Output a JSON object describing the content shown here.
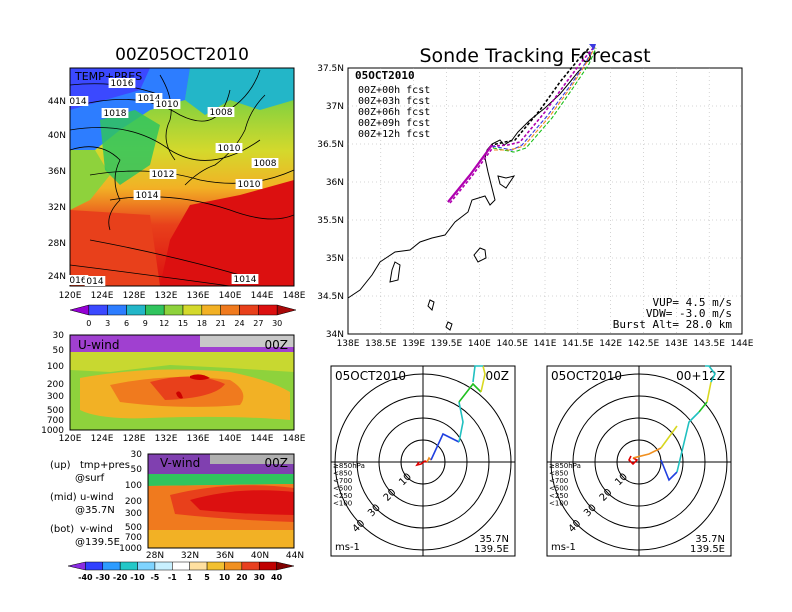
{
  "panels": {
    "map_title": "00Z05OCT2010",
    "map_label": "TEMP+PRES",
    "map_lat_ticks": [
      "44N",
      "40N",
      "36N",
      "32N",
      "28N",
      "24N"
    ],
    "map_lon_ticks": [
      "120E",
      "124E",
      "128E",
      "132E",
      "136E",
      "140E",
      "144E",
      "148E"
    ],
    "pressure_labels": [
      "1016",
      "1014",
      "1010",
      "1018",
      "014",
      "1008",
      "1010",
      "1008",
      "1012",
      "1010",
      "1014",
      "1014",
      "016",
      "014"
    ],
    "temp_scale_ticks": [
      "0",
      "3",
      "6",
      "9",
      "12",
      "15",
      "18",
      "21",
      "24",
      "27",
      "30"
    ],
    "temp_scale_colors": [
      "#9400d3",
      "#3b49ff",
      "#2d7dff",
      "#23b6c8",
      "#30c45e",
      "#8ed23c",
      "#d4d92c",
      "#f2b125",
      "#f07a1e",
      "#e8401b",
      "#dc1010",
      "#a80909"
    ],
    "uwind_label": "U-wind",
    "uwind_time": "00Z",
    "uwind_y_ticks": [
      "30",
      "50",
      "100",
      "200",
      "300",
      "500",
      "700",
      "1000"
    ],
    "uwind_x_ticks": [
      "120E",
      "124E",
      "128E",
      "132E",
      "136E",
      "140E",
      "144E",
      "148E"
    ],
    "vwind_label": "V-wind",
    "vwind_time": "00Z",
    "vwind_y_ticks": [
      "30",
      "50",
      "100",
      "200",
      "300",
      "500",
      "700",
      "1000"
    ],
    "vwind_x_ticks": [
      "28N",
      "32N",
      "36N",
      "40N",
      "44N"
    ],
    "wind_scale_ticks": [
      "-40",
      "-30",
      "-20",
      "-10",
      "-5",
      "-1",
      "1",
      "5",
      "10",
      "20",
      "30",
      "40"
    ],
    "legend_lines": [
      {
        "a": "(up)",
        "b": "tmp+pres",
        "c": "@surf"
      },
      {
        "a": "(mid)",
        "b": "u-wind",
        "c": "@35.7N"
      },
      {
        "a": "(bot)",
        "b": "v-wind",
        "c": "@139.5E"
      }
    ]
  },
  "tracking": {
    "title": "Sonde Tracking Forecast",
    "date": "05OCT2010",
    "legend": [
      {
        "label": "00Z+00h  fcst",
        "color": "#000000"
      },
      {
        "label": "00Z+03h  fcst",
        "color": "#b000b0"
      },
      {
        "label": "00Z+06h  fcst",
        "color": "#3a3ae0"
      },
      {
        "label": "00Z+09h  fcst",
        "color": "#18c018"
      },
      {
        "label": "00Z+12h  fcst",
        "color": "#f08a20"
      }
    ],
    "lat_ticks": [
      "37.5N",
      "37N",
      "36.5N",
      "36N",
      "35.5N",
      "35N",
      "34.5N",
      "34N"
    ],
    "lon_ticks": [
      "138E",
      "138.5E",
      "139E",
      "139.5E",
      "140E",
      "140.5E",
      "141E",
      "141.5E",
      "142E",
      "142.5E",
      "143E",
      "143.5E",
      "144E"
    ],
    "vup": "VUP= 4.5 m/s",
    "vdw": "VDW= -3.0 m/s",
    "burst": "Burst Alt= 28.0 km"
  },
  "hodographs": [
    {
      "date": "05OCT2010",
      "time": "00Z",
      "lat": "35.7N",
      "lon": "139.5E",
      "unit": "ms-1"
    },
    {
      "date": "05OCT2010",
      "time": "00+12Z",
      "lat": "35.7N",
      "lon": "139.5E",
      "unit": "ms-1"
    }
  ],
  "hodo_ring_labels": [
    "10",
    "20",
    "30",
    "40"
  ],
  "hodo_legend": [
    {
      "label": "≥850hPa",
      "color": "#e00000"
    },
    {
      "label": "<850",
      "color": "#f09020"
    },
    {
      "label": "<700",
      "color": "#d8d820"
    },
    {
      "label": "<500",
      "color": "#20c020"
    },
    {
      "label": "<250",
      "color": "#20c0c0"
    },
    {
      "label": "<100",
      "color": "#2040e0"
    }
  ]
}
